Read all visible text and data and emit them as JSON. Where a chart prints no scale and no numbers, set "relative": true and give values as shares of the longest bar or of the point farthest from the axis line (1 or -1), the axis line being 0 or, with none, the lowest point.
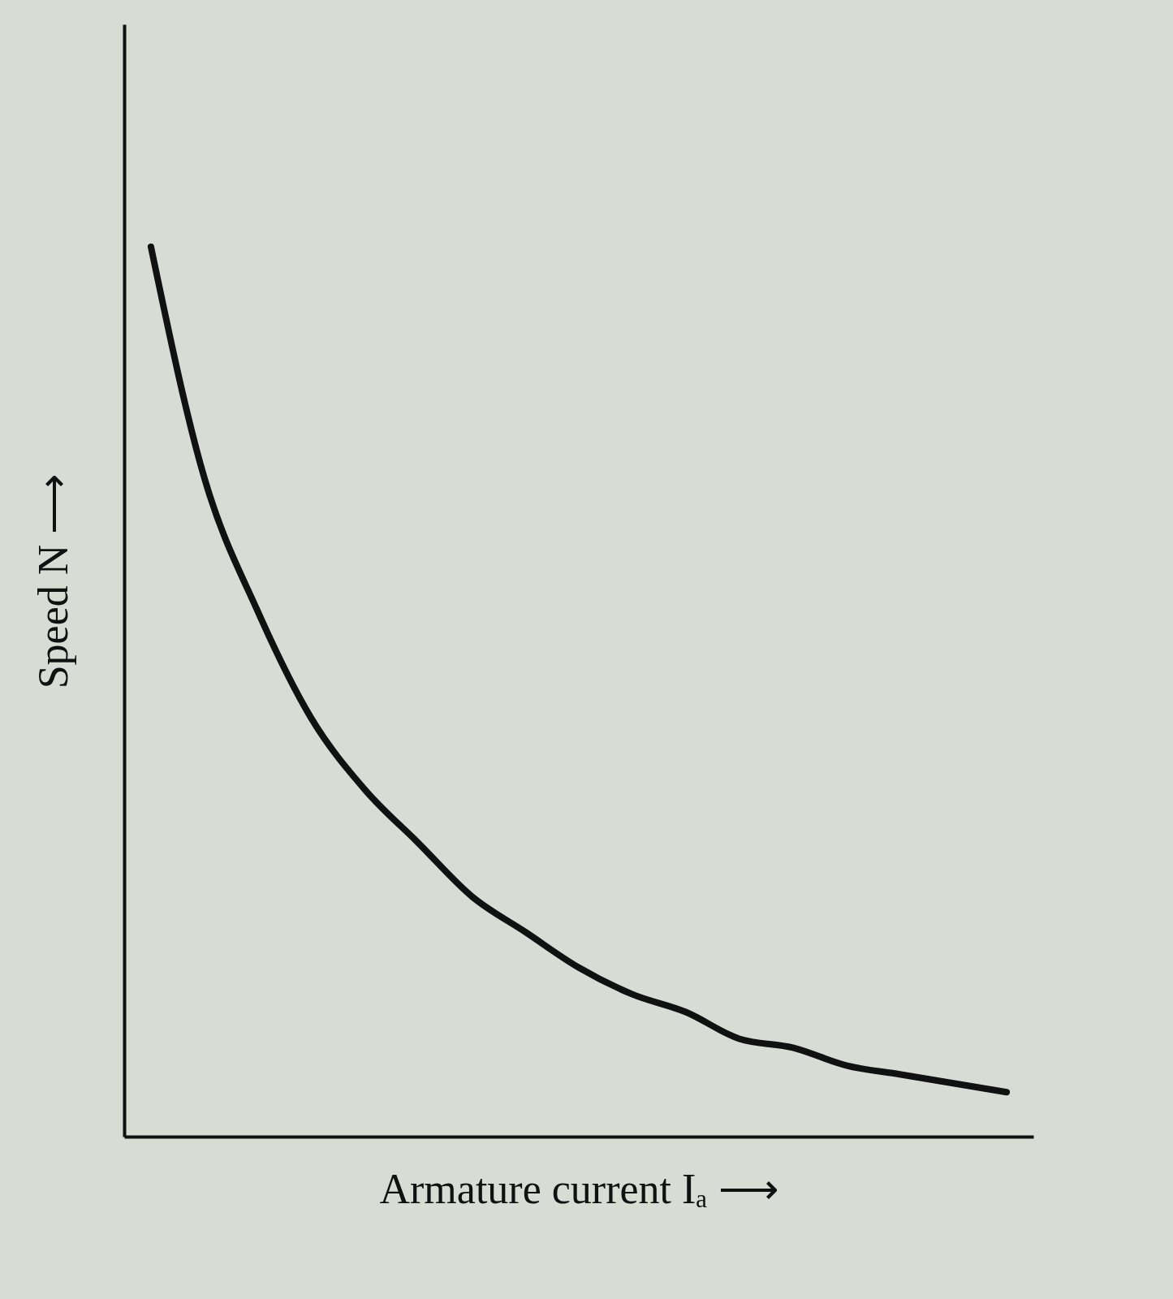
{
  "chart_data": {
    "type": "line",
    "relative": true,
    "xlabel": "Armature current Iₐ ⟶",
    "ylabel": "Speed N ⟶",
    "categories": [
      null,
      null,
      null,
      null,
      null,
      null,
      null,
      null,
      null,
      null,
      null,
      null,
      null,
      null,
      null,
      null,
      null
    ],
    "series": [
      {
        "color": "#111111",
        "values": [
          1,
          0.74,
          0.59,
          0.47,
          0.39,
          0.33,
          0.27,
          0.23,
          0.19,
          0.16,
          0.14,
          0.11,
          0.1,
          0.08,
          0.07,
          0.06,
          0.05
        ]
      }
    ],
    "grid": false,
    "tick_labels": false,
    "marker": "none",
    "line_style": "solid"
  }
}
